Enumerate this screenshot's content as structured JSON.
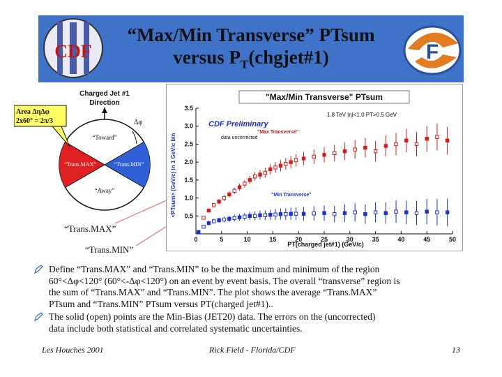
{
  "slide": {
    "title_line1": "“Max/Min Transverse” PTsum",
    "title_line2_prefix": "versus P",
    "title_line2_sub": "T",
    "title_line2_suffix": "(chgjet#1)",
    "left_logo_text": "CDF",
    "accent_color": "#3f73c9"
  },
  "diagram": {
    "header_line1": "Charged Jet #1",
    "header_line2": "Direction",
    "area_label_line1": "Area  ΔηΔφ",
    "area_label_line2": "2x60° = 2π/3",
    "delta_phi": "Δφ",
    "toward": "“Toward”",
    "away": "“Away”",
    "transmax": "“Trans.MAX”",
    "transmin": "“Trans.MIN”",
    "callout_transmax": "“Trans.MAX”",
    "callout_transmin": "“Trans.MIN”"
  },
  "chart_data": {
    "type": "scatter",
    "title": "\"Max/Min Transverse\" PTsum",
    "subtitle": "1.8 TeV |η|<1.0 PT>0.5 GeV",
    "annotation_prelim": "CDF Preliminary",
    "annotation_uncorr": "data uncorrected",
    "xlabel": "PT(charged jet#1)  (GeV/c)",
    "ylabel": "<PTsum> (GeV/c) in 1 GeV/c bin",
    "xlim": [
      0,
      50
    ],
    "ylim": [
      0,
      3.5
    ],
    "xticks": [
      "0",
      "5",
      "10",
      "15",
      "20",
      "25",
      "30",
      "35",
      "40",
      "45",
      "50"
    ],
    "yticks": [
      "0.5",
      "1.0",
      "1.5",
      "2.0",
      "2.5",
      "3.0",
      "3.5"
    ],
    "series": [
      {
        "name": "\"Max Transverse\"",
        "color": "#d41a1a",
        "points": [
          {
            "x": 0.5,
            "y": 0.05
          },
          {
            "x": 1.5,
            "y": 0.45
          },
          {
            "x": 2.5,
            "y": 0.65
          },
          {
            "x": 3.5,
            "y": 0.8
          },
          {
            "x": 4.5,
            "y": 0.9
          },
          {
            "x": 5.5,
            "y": 1.0
          },
          {
            "x": 6.5,
            "y": 1.1
          },
          {
            "x": 7.5,
            "y": 1.2
          },
          {
            "x": 8.5,
            "y": 1.3
          },
          {
            "x": 9.5,
            "y": 1.4
          },
          {
            "x": 10.5,
            "y": 1.5
          },
          {
            "x": 11.5,
            "y": 1.6
          },
          {
            "x": 12.5,
            "y": 1.65
          },
          {
            "x": 13.5,
            "y": 1.7
          },
          {
            "x": 14.5,
            "y": 1.8
          },
          {
            "x": 15.5,
            "y": 1.85
          },
          {
            "x": 16.5,
            "y": 1.9
          },
          {
            "x": 17.5,
            "y": 1.95
          },
          {
            "x": 18.5,
            "y": 2.0
          },
          {
            "x": 19.5,
            "y": 2.05
          },
          {
            "x": 21,
            "y": 2.1
          },
          {
            "x": 23,
            "y": 2.15
          },
          {
            "x": 25,
            "y": 2.2
          },
          {
            "x": 27,
            "y": 2.25
          },
          {
            "x": 29,
            "y": 2.3
          },
          {
            "x": 31,
            "y": 2.35
          },
          {
            "x": 33,
            "y": 2.4
          },
          {
            "x": 35,
            "y": 2.3
          },
          {
            "x": 37,
            "y": 2.45
          },
          {
            "x": 39,
            "y": 2.5
          },
          {
            "x": 41,
            "y": 2.6
          },
          {
            "x": 43,
            "y": 2.5
          },
          {
            "x": 45,
            "y": 2.65
          },
          {
            "x": 47,
            "y": 2.7
          },
          {
            "x": 49,
            "y": 2.6
          }
        ]
      },
      {
        "name": "\"Min Transverse\"",
        "color": "#1a2fd4",
        "points": [
          {
            "x": 0.5,
            "y": 0.05
          },
          {
            "x": 1.5,
            "y": 0.2
          },
          {
            "x": 2.5,
            "y": 0.3
          },
          {
            "x": 3.5,
            "y": 0.35
          },
          {
            "x": 4.5,
            "y": 0.38
          },
          {
            "x": 5.5,
            "y": 0.4
          },
          {
            "x": 6.5,
            "y": 0.42
          },
          {
            "x": 7.5,
            "y": 0.44
          },
          {
            "x": 8.5,
            "y": 0.46
          },
          {
            "x": 9.5,
            "y": 0.48
          },
          {
            "x": 10.5,
            "y": 0.5
          },
          {
            "x": 11.5,
            "y": 0.5
          },
          {
            "x": 12.5,
            "y": 0.52
          },
          {
            "x": 13.5,
            "y": 0.52
          },
          {
            "x": 14.5,
            "y": 0.53
          },
          {
            "x": 15.5,
            "y": 0.54
          },
          {
            "x": 16.5,
            "y": 0.55
          },
          {
            "x": 17.5,
            "y": 0.55
          },
          {
            "x": 18.5,
            "y": 0.56
          },
          {
            "x": 19.5,
            "y": 0.56
          },
          {
            "x": 21,
            "y": 0.56
          },
          {
            "x": 23,
            "y": 0.57
          },
          {
            "x": 25,
            "y": 0.58
          },
          {
            "x": 27,
            "y": 0.55
          },
          {
            "x": 29,
            "y": 0.58
          },
          {
            "x": 31,
            "y": 0.6
          },
          {
            "x": 33,
            "y": 0.55
          },
          {
            "x": 35,
            "y": 0.6
          },
          {
            "x": 37,
            "y": 0.58
          },
          {
            "x": 39,
            "y": 0.62
          },
          {
            "x": 41,
            "y": 0.6
          },
          {
            "x": 43,
            "y": 0.58
          },
          {
            "x": 45,
            "y": 0.62
          },
          {
            "x": 47,
            "y": 0.6
          },
          {
            "x": 49,
            "y": 0.6
          }
        ]
      }
    ]
  },
  "bullets": {
    "b1_line1": "Define “Trans.MAX” and “Trans.MIN” to be the maximum and minimum of the region",
    "b1_line2": "60°<Δφ<120° (60°<-Δφ<120°) on an event by event basis.  The overall “transverse” region is",
    "b1_line3": "the sum of “Trans.MAX” and “Trans.MIN”. The plot shows the average “Trans.MAX”",
    "b1_line4": "PTsum and “Trans.MIN” PTsum versus PT(charged jet#1)..",
    "b2_line1": "The solid (open) points are the Min-Bias (JET20) data. The errors on the (uncorrected)",
    "b2_line2": "data include both statistical and correlated systematic uncertainties."
  },
  "footer": {
    "left": "Les Houches 2001",
    "center": "Rick Field - Florida/CDF",
    "right": "13"
  }
}
